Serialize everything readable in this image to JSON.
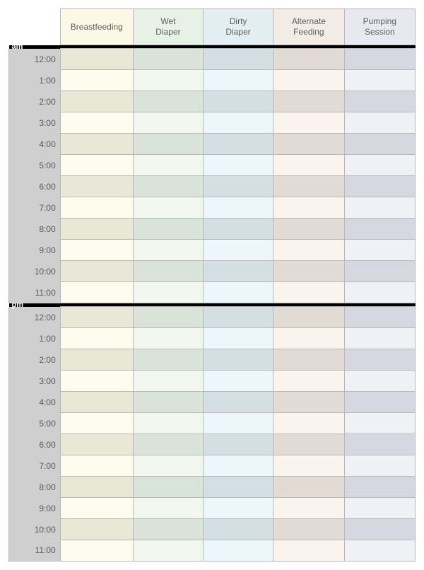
{
  "columns": [
    {
      "label": "Breastfeeding",
      "colors": {
        "header": "#fbf8e6",
        "odd": "#fdfcef",
        "even": "#e9e8d6"
      }
    },
    {
      "label": "Wet\nDiaper",
      "colors": {
        "header": "#e8f1e6",
        "odd": "#f2f8f0",
        "even": "#d9e3d7"
      }
    },
    {
      "label": "Dirty\nDiaper",
      "colors": {
        "header": "#e3eef2",
        "odd": "#edf6fa",
        "even": "#d3dfe3"
      }
    },
    {
      "label": "Alternate\nFeeding",
      "colors": {
        "header": "#f3ece6",
        "odd": "#faf3ee",
        "even": "#e2dbd5"
      }
    },
    {
      "label": "Pumping\nSession",
      "colors": {
        "header": "#e8e8f1",
        "odd": "#f0f0f7",
        "even": "#d7d7e1"
      }
    }
  ],
  "periods": [
    {
      "label": "am",
      "hours": [
        "12:00",
        "1:00",
        "2:00",
        "3:00",
        "4:00",
        "5:00",
        "6:00",
        "7:00",
        "8:00",
        "9:00",
        "10:00",
        "11:00"
      ]
    },
    {
      "label": "pm",
      "hours": [
        "12:00",
        "1:00",
        "2:00",
        "3:00",
        "4:00",
        "5:00",
        "6:00",
        "7:00",
        "8:00",
        "9:00",
        "10:00",
        "11:00"
      ]
    }
  ],
  "layout": {
    "divider_color": "#000000",
    "grid_border_color": "#b8b8b8",
    "time_column_bg": "#cfcfcf",
    "header_text_color": "#606060",
    "time_text_color": "#5a5a5a",
    "font_size_header": 12,
    "font_size_time": 12
  }
}
